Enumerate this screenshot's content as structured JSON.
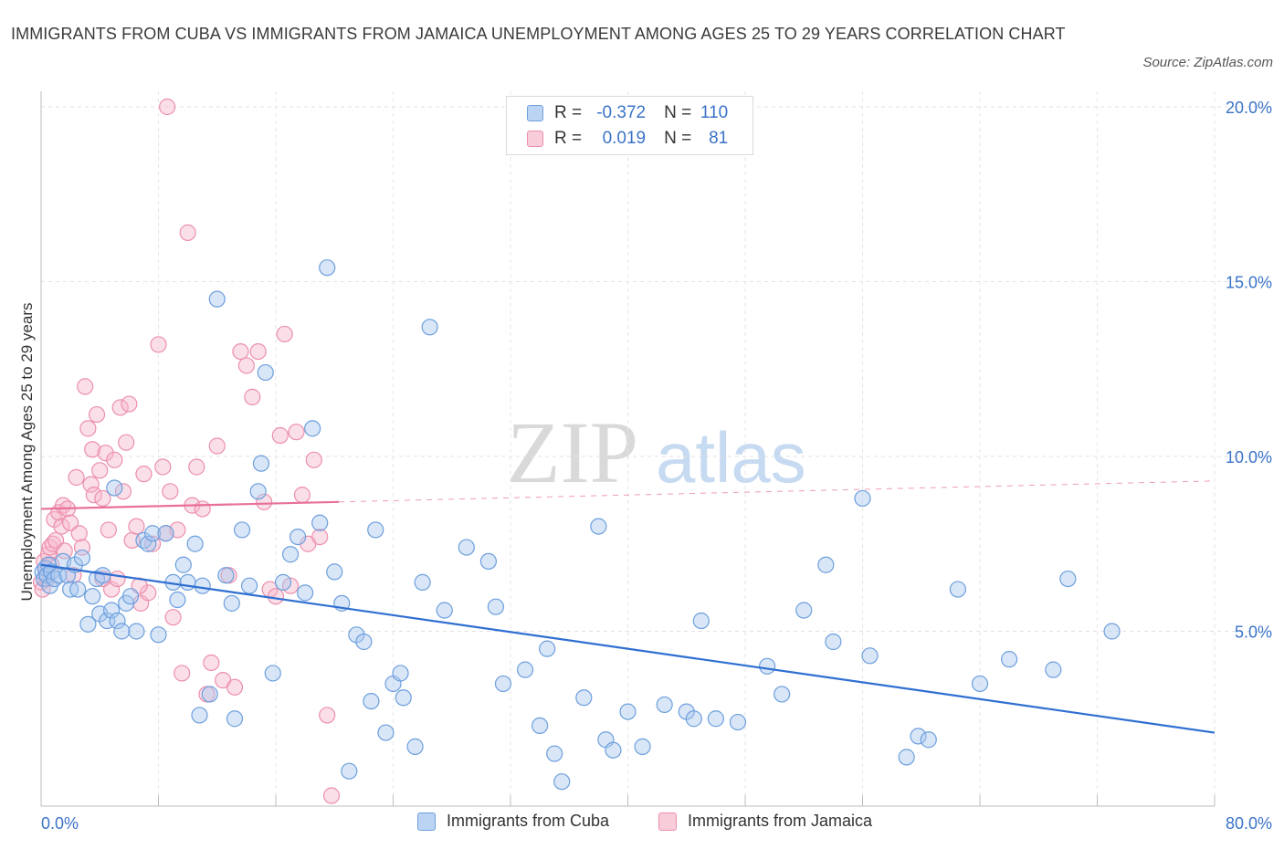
{
  "title": "IMMIGRANTS FROM CUBA VS IMMIGRANTS FROM JAMAICA UNEMPLOYMENT AMONG AGES 25 TO 29 YEARS CORRELATION CHART",
  "source": "Source: ZipAtlas.com",
  "watermark": {
    "zip": "ZIP",
    "atlas": "atlas"
  },
  "legend": {
    "rows": [
      {
        "r_label": "R =",
        "r_value": "-0.372",
        "n_label": "N =",
        "n_value": "110"
      },
      {
        "r_label": "R =",
        "r_value": "0.019",
        "n_label": "N =",
        "n_value": "81"
      }
    ]
  },
  "bottom_legend": {
    "cuba": "Immigrants from Cuba",
    "jamaica": "Immigrants from Jamaica"
  },
  "colors": {
    "cuba_fill": "#a9c8f0",
    "cuba_stroke": "#6d9fdc",
    "cuba_line": "#2f6fd1",
    "jamaica_fill": "#f6b9cc",
    "jamaica_stroke": "#ec8fac",
    "jamaica_line": "#e8709a",
    "axis_text": "#3b73c8"
  },
  "chart_data": {
    "type": "scatter",
    "title": "IMMIGRANTS FROM CUBA VS IMMIGRANTS FROM JAMAICA UNEMPLOYMENT AMONG AGES 25 TO 29 YEARS CORRELATION CHART",
    "xlabel": "",
    "ylabel": "Unemployment Among Ages 25 to 29 years",
    "xlim": [
      0,
      80
    ],
    "ylim": [
      0,
      20.5
    ],
    "x_tick_labels": [
      "0.0%",
      "80.0%"
    ],
    "y_ticks": [
      5,
      10,
      15,
      20
    ],
    "y_tick_labels": [
      "5.0%",
      "10.0%",
      "15.0%",
      "20.0%"
    ],
    "grid": true,
    "series": [
      {
        "name": "Immigrants from Cuba",
        "R": -0.372,
        "N": 110,
        "trend": {
          "x": [
            0,
            80
          ],
          "y": [
            6.9,
            2.1
          ]
        },
        "points": [
          [
            0.1,
            6.7
          ],
          [
            0.2,
            6.5
          ],
          [
            0.3,
            6.8
          ],
          [
            0.4,
            6.6
          ],
          [
            0.5,
            6.9
          ],
          [
            0.6,
            6.3
          ],
          [
            0.7,
            6.7
          ],
          [
            0.9,
            6.5
          ],
          [
            1.2,
            6.6
          ],
          [
            1.5,
            7.0
          ],
          [
            1.8,
            6.6
          ],
          [
            2.0,
            6.2
          ],
          [
            2.3,
            6.9
          ],
          [
            2.5,
            6.2
          ],
          [
            2.8,
            7.1
          ],
          [
            3.2,
            5.2
          ],
          [
            3.5,
            6.0
          ],
          [
            3.8,
            6.5
          ],
          [
            4.0,
            5.5
          ],
          [
            4.2,
            6.6
          ],
          [
            4.5,
            5.3
          ],
          [
            4.8,
            5.6
          ],
          [
            5.2,
            5.3
          ],
          [
            5.5,
            5.0
          ],
          [
            5.8,
            5.8
          ],
          [
            6.1,
            6.0
          ],
          [
            6.5,
            5.0
          ],
          [
            7.0,
            7.6
          ],
          [
            7.3,
            7.5
          ],
          [
            7.6,
            7.8
          ],
          [
            8.0,
            4.9
          ],
          [
            8.5,
            7.8
          ],
          [
            9.0,
            6.4
          ],
          [
            9.3,
            5.9
          ],
          [
            9.7,
            6.9
          ],
          [
            10.0,
            6.4
          ],
          [
            10.5,
            7.5
          ],
          [
            11.0,
            6.3
          ],
          [
            11.5,
            3.2
          ],
          [
            10.8,
            2.6
          ],
          [
            12.0,
            14.5
          ],
          [
            12.6,
            6.6
          ],
          [
            13.2,
            2.5
          ],
          [
            13.7,
            7.9
          ],
          [
            14.2,
            6.3
          ],
          [
            14.8,
            9.0
          ],
          [
            15.3,
            12.4
          ],
          [
            15.8,
            3.8
          ],
          [
            16.5,
            6.4
          ],
          [
            17.0,
            7.2
          ],
          [
            17.5,
            7.7
          ],
          [
            18.0,
            6.1
          ],
          [
            18.5,
            10.8
          ],
          [
            19.0,
            8.1
          ],
          [
            19.5,
            15.4
          ],
          [
            20.0,
            6.7
          ],
          [
            20.5,
            5.8
          ],
          [
            21.0,
            1.0
          ],
          [
            21.5,
            4.9
          ],
          [
            22.0,
            4.7
          ],
          [
            22.8,
            7.9
          ],
          [
            23.5,
            2.1
          ],
          [
            24.0,
            3.5
          ],
          [
            24.7,
            3.1
          ],
          [
            25.5,
            1.7
          ],
          [
            26.0,
            6.4
          ],
          [
            26.5,
            13.7
          ],
          [
            27.5,
            5.6
          ],
          [
            29.0,
            7.4
          ],
          [
            30.5,
            7.0
          ],
          [
            31.0,
            5.7
          ],
          [
            31.5,
            3.5
          ],
          [
            33.0,
            3.9
          ],
          [
            34.0,
            2.3
          ],
          [
            34.5,
            4.5
          ],
          [
            35.0,
            1.5
          ],
          [
            35.5,
            0.7
          ],
          [
            37.0,
            3.1
          ],
          [
            38.0,
            8.0
          ],
          [
            38.5,
            1.9
          ],
          [
            39.0,
            1.6
          ],
          [
            40.0,
            2.7
          ],
          [
            41.0,
            1.7
          ],
          [
            42.5,
            2.9
          ],
          [
            44.0,
            2.7
          ],
          [
            44.5,
            2.5
          ],
          [
            45.0,
            5.3
          ],
          [
            46.0,
            2.5
          ],
          [
            47.5,
            2.4
          ],
          [
            49.5,
            4.0
          ],
          [
            50.5,
            3.2
          ],
          [
            52.0,
            5.6
          ],
          [
            53.5,
            6.9
          ],
          [
            54.0,
            4.7
          ],
          [
            56.0,
            8.8
          ],
          [
            56.5,
            4.3
          ],
          [
            59.0,
            1.4
          ],
          [
            59.8,
            2.0
          ],
          [
            60.5,
            1.9
          ],
          [
            62.5,
            6.2
          ],
          [
            64.0,
            3.5
          ],
          [
            66.0,
            4.2
          ],
          [
            69.0,
            3.9
          ],
          [
            70.0,
            6.5
          ],
          [
            73.0,
            5.0
          ],
          [
            22.5,
            3.0
          ],
          [
            13.0,
            5.8
          ],
          [
            15.0,
            9.8
          ],
          [
            24.5,
            3.8
          ],
          [
            5.0,
            9.1
          ]
        ]
      },
      {
        "name": "Immigrants from Jamaica",
        "R": 0.019,
        "N": 81,
        "trend_solid": {
          "x": [
            0,
            20.3
          ],
          "y": [
            8.5,
            8.7
          ]
        },
        "trend_dashed": {
          "x": [
            20.3,
            80
          ],
          "y": [
            8.7,
            9.3
          ]
        },
        "points": [
          [
            0.0,
            6.4
          ],
          [
            0.1,
            6.2
          ],
          [
            0.2,
            7.0
          ],
          [
            0.3,
            6.8
          ],
          [
            0.4,
            6.5
          ],
          [
            0.5,
            7.2
          ],
          [
            0.6,
            7.4
          ],
          [
            0.7,
            6.9
          ],
          [
            0.8,
            7.5
          ],
          [
            0.9,
            8.2
          ],
          [
            1.0,
            7.6
          ],
          [
            1.2,
            8.4
          ],
          [
            1.4,
            8.0
          ],
          [
            1.5,
            8.6
          ],
          [
            1.6,
            7.3
          ],
          [
            1.8,
            8.5
          ],
          [
            2.0,
            8.1
          ],
          [
            2.2,
            6.6
          ],
          [
            2.4,
            9.4
          ],
          [
            2.6,
            7.8
          ],
          [
            2.8,
            7.4
          ],
          [
            3.0,
            12.0
          ],
          [
            3.2,
            10.8
          ],
          [
            3.4,
            9.2
          ],
          [
            3.5,
            10.2
          ],
          [
            3.6,
            8.9
          ],
          [
            3.8,
            11.2
          ],
          [
            4.0,
            9.6
          ],
          [
            4.2,
            8.8
          ],
          [
            4.4,
            10.1
          ],
          [
            4.6,
            7.9
          ],
          [
            4.8,
            6.2
          ],
          [
            5.0,
            9.9
          ],
          [
            5.2,
            6.5
          ],
          [
            5.4,
            11.4
          ],
          [
            5.6,
            9.0
          ],
          [
            5.8,
            10.4
          ],
          [
            6.0,
            11.5
          ],
          [
            6.2,
            7.6
          ],
          [
            6.5,
            8.0
          ],
          [
            6.8,
            5.8
          ],
          [
            7.0,
            9.5
          ],
          [
            7.3,
            6.1
          ],
          [
            7.6,
            7.5
          ],
          [
            8.0,
            13.2
          ],
          [
            8.3,
            9.7
          ],
          [
            8.5,
            7.8
          ],
          [
            8.8,
            9.0
          ],
          [
            9.0,
            5.4
          ],
          [
            9.3,
            7.9
          ],
          [
            9.6,
            3.8
          ],
          [
            10.0,
            16.4
          ],
          [
            10.3,
            8.6
          ],
          [
            10.6,
            9.7
          ],
          [
            11.0,
            8.5
          ],
          [
            11.3,
            3.2
          ],
          [
            11.6,
            4.1
          ],
          [
            12.0,
            10.3
          ],
          [
            12.4,
            3.6
          ],
          [
            12.8,
            6.6
          ],
          [
            13.2,
            3.4
          ],
          [
            13.6,
            13.0
          ],
          [
            14.0,
            12.6
          ],
          [
            14.4,
            11.7
          ],
          [
            14.8,
            13.0
          ],
          [
            15.2,
            8.7
          ],
          [
            15.6,
            6.2
          ],
          [
            16.0,
            6.0
          ],
          [
            16.3,
            10.6
          ],
          [
            16.6,
            13.5
          ],
          [
            17.0,
            6.3
          ],
          [
            17.4,
            10.7
          ],
          [
            17.8,
            8.9
          ],
          [
            18.2,
            7.5
          ],
          [
            18.6,
            9.9
          ],
          [
            19.0,
            7.7
          ],
          [
            19.5,
            2.6
          ],
          [
            19.8,
            0.3
          ],
          [
            8.6,
            20.0
          ],
          [
            4.2,
            6.5
          ],
          [
            6.7,
            6.3
          ]
        ]
      }
    ]
  }
}
